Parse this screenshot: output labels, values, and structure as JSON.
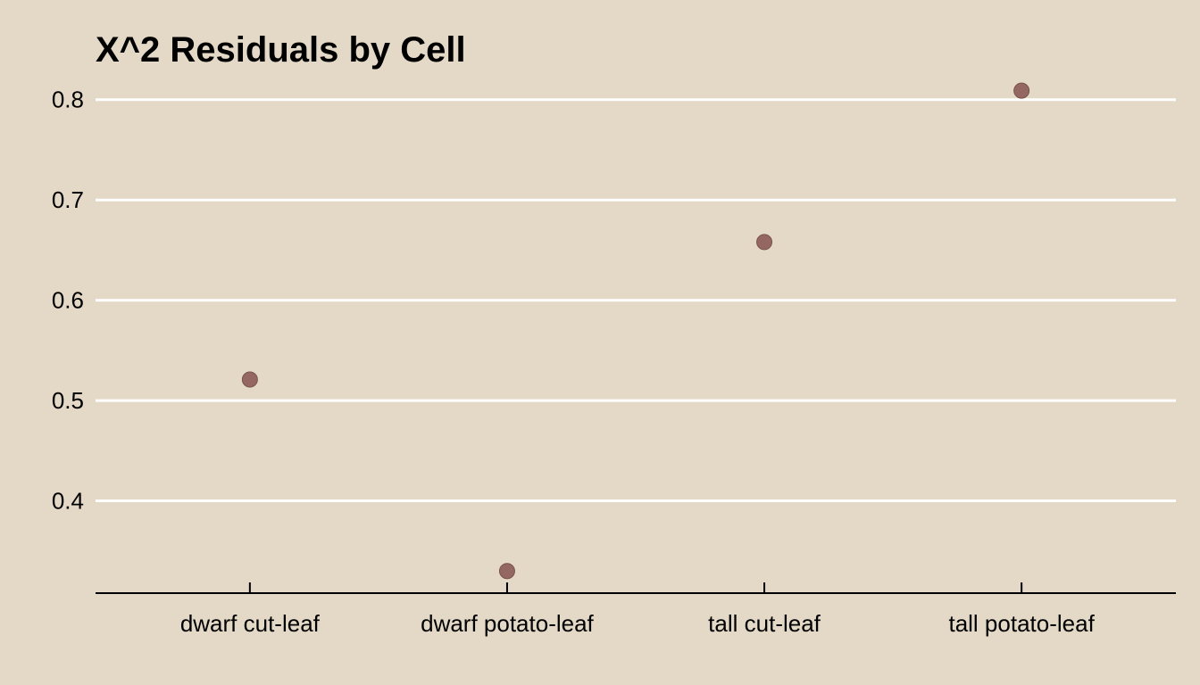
{
  "chart_data": {
    "type": "scatter",
    "title": "X^2 Residuals by Cell",
    "xlabel": "",
    "ylabel": "",
    "categories": [
      "dwarf cut-leaf",
      "dwarf potato-leaf",
      "tall cut-leaf",
      "tall potato-leaf"
    ],
    "values": [
      0.521,
      0.33,
      0.658,
      0.809
    ],
    "yticks": [
      "0.4",
      "0.5",
      "0.6",
      "0.7",
      "0.8"
    ],
    "ylim": [
      0.308,
      0.83
    ],
    "grid": "horizontal",
    "legend": "none",
    "colors": {
      "background": "#e4d9c6",
      "point": "#946762",
      "point_stroke": "#7a524d",
      "grid": "#ffffff",
      "axis": "#000000"
    }
  }
}
